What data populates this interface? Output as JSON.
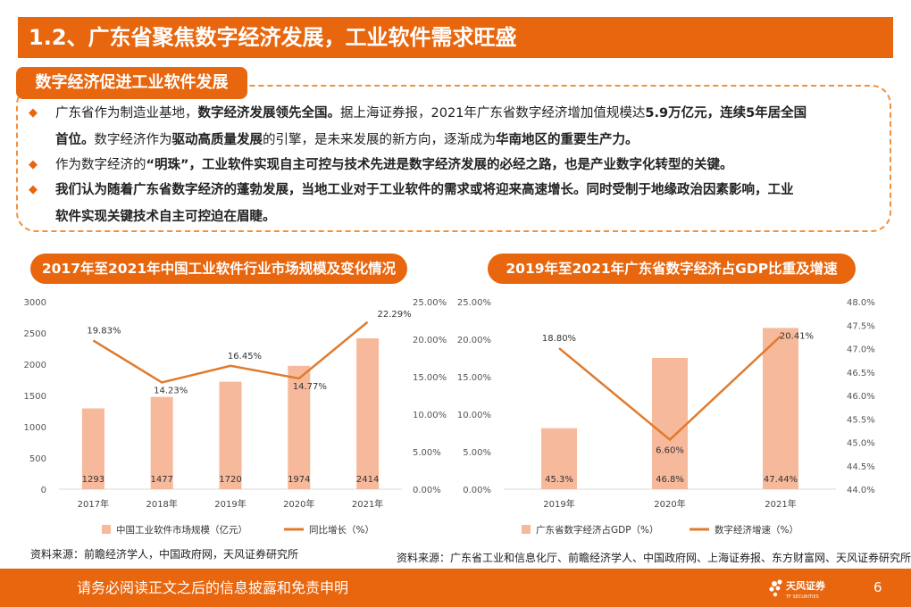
{
  "title": "1.2、广东省聚焦数字经济发展，工业软件需求旺盛",
  "section_label": "数字经济促进工业软件发展",
  "bullets": [
    {
      "icon": "diamond-icon",
      "line1": [
        {
          "text": "广东省作为制造业基地，",
          "bold": false
        },
        {
          "text": "数字经济发展领先全国。",
          "bold": true
        },
        {
          "text": "据上海证券报，2021年广东省数字经济增加值规模达",
          "bold": false
        },
        {
          "text": "5.9万亿元，连续5年居全国",
          "bold": true
        }
      ],
      "line2": [
        {
          "text": "首位。",
          "bold": true
        },
        {
          "text": "数字经济作为",
          "bold": false
        },
        {
          "text": "驱动高质量发展",
          "bold": true
        },
        {
          "text": "的引擎，是未来发展的新方向，逐渐成为",
          "bold": false
        },
        {
          "text": "华南地区的重要生产力。",
          "bold": true
        }
      ]
    },
    {
      "icon": "diamond-icon",
      "line1": [
        {
          "text": "作为数字经济的",
          "bold": false
        },
        {
          "text": "“明珠”，工业软件实现自主可控与技术先进是数字经济发展的必经之路，也是产业数字化转型的关键。",
          "bold": true
        }
      ]
    },
    {
      "icon": "diamond-icon",
      "line1": [
        {
          "text": "我们认为随着广东省数字经济的蓬勃发展，当地工业对于工业软件的需求或将迎来高速增长。同时受制于地缘政治因素影响，工业",
          "bold": true
        }
      ],
      "line2": [
        {
          "text": "软件实现关键技术自主可控迫在眉睫。",
          "bold": true
        }
      ]
    }
  ],
  "chart_data": [
    {
      "type": "bar",
      "title": "2017年至2021年中国工业软件行业市场规模及变化情况",
      "categories": [
        "2017年",
        "2018年",
        "2019年",
        "2020年",
        "2021年"
      ],
      "series": [
        {
          "name": "中国工业软件市场规模（亿元）",
          "type": "bar",
          "axis": "left",
          "values": [
            1293,
            1477,
            1720,
            1974,
            2414
          ],
          "labels": [
            "1293",
            "1477",
            "1720",
            "1974",
            "2414"
          ]
        },
        {
          "name": "同比增长（%）",
          "type": "line",
          "axis": "right",
          "values": [
            19.83,
            14.23,
            16.45,
            14.77,
            22.29
          ],
          "labels": [
            "19.83%",
            "14.23%",
            "16.45%",
            "14.77%",
            "22.29%"
          ]
        }
      ],
      "ylim_left": [
        0,
        3000
      ],
      "ylim_right": [
        0,
        25
      ],
      "yticks_left": [
        "0",
        "500",
        "1000",
        "1500",
        "2000",
        "2500",
        "3000"
      ],
      "yticks_right": [
        "0.00%",
        "5.00%",
        "10.00%",
        "15.00%",
        "20.00%",
        "25.00%"
      ],
      "legend_position": "bottom",
      "grid": false,
      "colors": {
        "bar": "#f7b99b",
        "line": "#e07b2e"
      },
      "source": "资料来源：前瞻经济学人，中国政府网，天风证券研究所"
    },
    {
      "type": "bar",
      "title": "2019年至2021年广东省数字经济占GDP比重及增速",
      "categories": [
        "2019年",
        "2020年",
        "2021年"
      ],
      "series": [
        {
          "name": "广东省数字经济占GDP（%）",
          "type": "bar",
          "axis": "right",
          "values": [
            45.3,
            46.8,
            47.44
          ],
          "labels": [
            "45.3%",
            "46.8%",
            "47.44%"
          ]
        },
        {
          "name": "数字经济增速（%）",
          "type": "line",
          "axis": "left",
          "values": [
            18.8,
            6.6,
            20.41
          ],
          "labels": [
            "18.80%",
            "6.60%",
            "20.41%"
          ]
        }
      ],
      "ylim_left": [
        0,
        25
      ],
      "ylim_right": [
        44.0,
        48.0
      ],
      "yticks_left": [
        "0.00%",
        "5.00%",
        "10.00%",
        "15.00%",
        "20.00%",
        "25.00%"
      ],
      "yticks_right": [
        "44.0%",
        "44.5%",
        "45.0%",
        "45.5%",
        "46.0%",
        "46.5%",
        "47.0%",
        "47.5%",
        "48.0%"
      ],
      "legend_position": "bottom",
      "grid": false,
      "colors": {
        "bar": "#f7b99b",
        "line": "#e07b2e"
      },
      "source": "资料来源：广东省工业和信息化厅、前瞻经济学人、中国政府网、上海证券报、东方财富网、天风证券研究所"
    }
  ],
  "footer": {
    "disclaimer": "请务必阅读正文之后的信息披露和免责申明",
    "logo_text": "天风证券",
    "logo_subtext": "TF SECURITIES",
    "page_number": "6"
  },
  "colors": {
    "accent": "#e8660e",
    "bar": "#f7b99b",
    "line": "#e07b2e"
  }
}
